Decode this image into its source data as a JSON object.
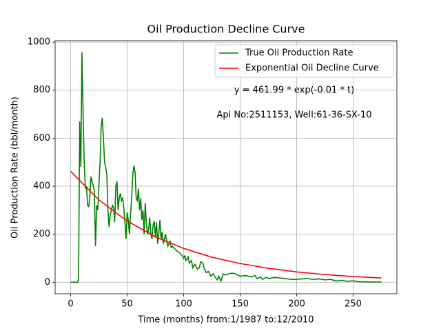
{
  "chart_data": {
    "type": "line",
    "title": "Oil Production Decline Curve",
    "xlabel": "Time (months) from:1/1987 to:12/2010",
    "ylabel": "Oil Production Rate (bbl/month)",
    "annotations": [
      "y = 461.99 * exp(-0.01 * t)",
      "Api No:2511153, Well:61-36-SX-10"
    ],
    "xlim": [
      -13.75,
      288.75
    ],
    "ylim": [
      -48,
      1006
    ],
    "xticks": [
      0,
      50,
      100,
      150,
      200,
      250
    ],
    "yticks": [
      0,
      200,
      400,
      600,
      800,
      1000
    ],
    "grid": true,
    "legend": "upper right",
    "series": [
      {
        "name": "True Oil Production Rate",
        "color": "#008000",
        "x": [
          0,
          6,
          7,
          8,
          9,
          10,
          11,
          12,
          13,
          14,
          15,
          16,
          17,
          18,
          19,
          20,
          21,
          22,
          23,
          24,
          25,
          26,
          27,
          28,
          29,
          30,
          31,
          32,
          33,
          34,
          35,
          36,
          37,
          38,
          39,
          40,
          41,
          42,
          43,
          44,
          45,
          46,
          47,
          48,
          49,
          50,
          51,
          52,
          53,
          54,
          55,
          56,
          57,
          58,
          59,
          60,
          61,
          62,
          63,
          64,
          65,
          66,
          67,
          68,
          69,
          70,
          71,
          72,
          73,
          74,
          75,
          76,
          77,
          78,
          79,
          80,
          81,
          82,
          83,
          84,
          85,
          86,
          87,
          88,
          89,
          90,
          92,
          94,
          96,
          98,
          100,
          101,
          102,
          104,
          105,
          107,
          108,
          110,
          112,
          114,
          115,
          117,
          118,
          120,
          122,
          124,
          126,
          128,
          130,
          131,
          133,
          135,
          137,
          140,
          143,
          146,
          150,
          155,
          160,
          163,
          165,
          168,
          170,
          173,
          176,
          180,
          185,
          190,
          195,
          200,
          205,
          210,
          215,
          220,
          225,
          230,
          235,
          240,
          245,
          250,
          255,
          260,
          265,
          270,
          275
        ],
        "values": [
          0,
          0,
          10,
          670,
          480,
          958,
          700,
          500,
          390,
          400,
          320,
          315,
          360,
          440,
          420,
          400,
          380,
          150,
          320,
          300,
          400,
          500,
          650,
          685,
          600,
          500,
          480,
          450,
          300,
          230,
          280,
          300,
          320,
          310,
          250,
          400,
          420,
          300,
          350,
          370,
          340,
          350,
          310,
          250,
          180,
          290,
          260,
          200,
          280,
          350,
          450,
          485,
          460,
          350,
          340,
          390,
          300,
          350,
          260,
          300,
          200,
          330,
          250,
          200,
          220,
          270,
          200,
          180,
          240,
          255,
          190,
          250,
          160,
          200,
          260,
          180,
          210,
          160,
          180,
          200,
          170,
          150,
          160,
          170,
          145,
          150,
          140,
          130,
          125,
          115,
          100,
          110,
          90,
          105,
          80,
          90,
          60,
          75,
          55,
          60,
          85,
          80,
          60,
          40,
          45,
          25,
          35,
          20,
          10,
          25,
          5,
          35,
          30,
          35,
          38,
          35,
          25,
          28,
          22,
          28,
          15,
          22,
          12,
          20,
          15,
          20,
          18,
          15,
          12,
          12,
          14,
          15,
          12,
          14,
          10,
          12,
          5,
          8,
          4,
          6,
          2,
          1,
          1,
          1,
          1
        ]
      },
      {
        "name": "Exponential Oil Decline Curve",
        "color": "#ff0000",
        "x": [
          0,
          25,
          50,
          75,
          100,
          125,
          150,
          175,
          200,
          225,
          250,
          275
        ],
        "values": [
          462,
          343,
          255,
          189,
          141,
          104,
          78,
          58,
          43,
          32,
          23.6,
          17.6
        ]
      }
    ]
  }
}
